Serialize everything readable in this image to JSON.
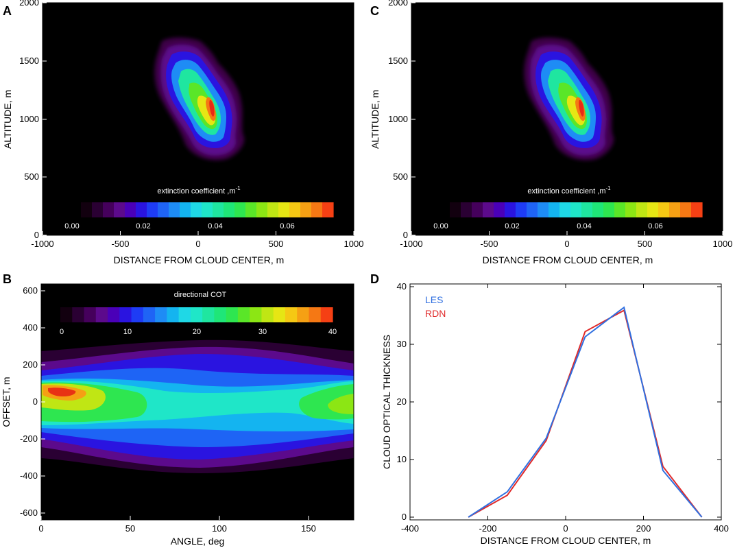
{
  "colors": {
    "background": "#000000",
    "les_line": "#2f6fe0",
    "rdn_line": "#e02a2a",
    "colormap": [
      "#12000f",
      "#2a0033",
      "#45005c",
      "#5c0a8c",
      "#4a00b8",
      "#2a14e0",
      "#1e3cf5",
      "#1f64f5",
      "#1e8cf5",
      "#14b4f0",
      "#1fd8e6",
      "#1fe6c8",
      "#1fe6a0",
      "#1fe678",
      "#2ee650",
      "#5ae628",
      "#8ce614",
      "#c0e614",
      "#e6e614",
      "#f5c814",
      "#f5a014",
      "#f57814",
      "#f54014"
    ]
  },
  "panels": {
    "A": {
      "letter": "A",
      "xlabel": "DISTANCE FROM CLOUD CENTER, m",
      "ylabel": "ALTITUDE, m",
      "xticks": [
        "-1000",
        "-500",
        "0",
        "500",
        "1000"
      ],
      "yticks": [
        "0",
        "500",
        "1000",
        "1500",
        "2000"
      ],
      "colorbar_title": "extinction coefficient ,m",
      "colorbar_sup": "-1",
      "colorbar_ticks": [
        "0.00",
        "0.02",
        "0.04",
        "0.06"
      ]
    },
    "C": {
      "letter": "C",
      "xlabel": "DISTANCE FROM CLOUD CENTER, m",
      "ylabel": "ALTITUDE, m",
      "xticks": [
        "-1000",
        "-500",
        "0",
        "500",
        "1000"
      ],
      "yticks": [
        "0",
        "500",
        "1000",
        "1500",
        "2000"
      ],
      "colorbar_title": "extinction coefficient ,m",
      "colorbar_sup": "-1",
      "colorbar_ticks": [
        "0.00",
        "0.02",
        "0.04",
        "0.06"
      ]
    },
    "B": {
      "letter": "B",
      "xlabel": "ANGLE, deg",
      "ylabel": "OFFSET, m",
      "xticks": [
        "0",
        "50",
        "100",
        "150"
      ],
      "yticks": [
        "-600",
        "-400",
        "-200",
        "0",
        "200",
        "400",
        "600"
      ],
      "colorbar_title": "directional COT",
      "colorbar_ticks": [
        "0",
        "10",
        "20",
        "30",
        "40"
      ]
    }
  },
  "chart_data": [
    {
      "panel": "A",
      "type": "heatmap",
      "title": "",
      "xlabel": "DISTANCE FROM CLOUD CENTER, m",
      "ylabel": "ALTITUDE, m",
      "xlim": [
        -1000,
        1000
      ],
      "ylim": [
        0,
        2000
      ],
      "colorbar": {
        "label": "extinction coefficient ,m-1",
        "range": [
          0.0,
          0.075
        ]
      },
      "peak": {
        "x": 100,
        "y": 1150,
        "value": 0.073
      },
      "cloud_extent": {
        "x": [
          -300,
          350
        ],
        "y": [
          700,
          1650
        ]
      }
    },
    {
      "panel": "C",
      "type": "heatmap",
      "title": "",
      "xlabel": "DISTANCE FROM CLOUD CENTER, m",
      "ylabel": "ALTITUDE, m",
      "xlim": [
        -1000,
        1000
      ],
      "ylim": [
        0,
        2000
      ],
      "colorbar": {
        "label": "extinction coefficient ,m-1",
        "range": [
          0.0,
          0.075
        ]
      },
      "peak": {
        "x": 100,
        "y": 1150,
        "value": 0.07
      },
      "cloud_extent": {
        "x": [
          -300,
          350
        ],
        "y": [
          700,
          1650
        ]
      }
    },
    {
      "panel": "B",
      "type": "heatmap",
      "title": "",
      "xlabel": "ANGLE, deg",
      "ylabel": "OFFSET, m",
      "xlim": [
        0,
        175
      ],
      "ylim": [
        -650,
        650
      ],
      "colorbar": {
        "label": "directional COT",
        "range": [
          0,
          42
        ]
      },
      "peak": {
        "x": 15,
        "y": 60,
        "value": 40
      }
    },
    {
      "panel": "D",
      "type": "line",
      "title": "",
      "xlabel": "DISTANCE FROM CLOUD CENTER, m",
      "ylabel": "CLOUD OPTICAL THICKNESS",
      "xlim": [
        -400,
        400
      ],
      "ylim": [
        0,
        40
      ],
      "xticks": [
        "-400",
        "-200",
        "0",
        "200",
        "400"
      ],
      "yticks": [
        "0",
        "10",
        "20",
        "30",
        "40"
      ],
      "legend": [
        "LES",
        "RDN"
      ],
      "legend_position": "top-left",
      "series": [
        {
          "name": "LES",
          "x": [
            -250,
            -150,
            -50,
            50,
            150,
            250,
            350
          ],
          "y": [
            0,
            4.4,
            13.7,
            31.3,
            36.4,
            8.1,
            0
          ]
        },
        {
          "name": "RDN",
          "x": [
            -250,
            -150,
            -50,
            50,
            150,
            250,
            350
          ],
          "y": [
            0,
            3.8,
            13.3,
            32.2,
            35.9,
            8.8,
            0
          ]
        }
      ]
    }
  ]
}
